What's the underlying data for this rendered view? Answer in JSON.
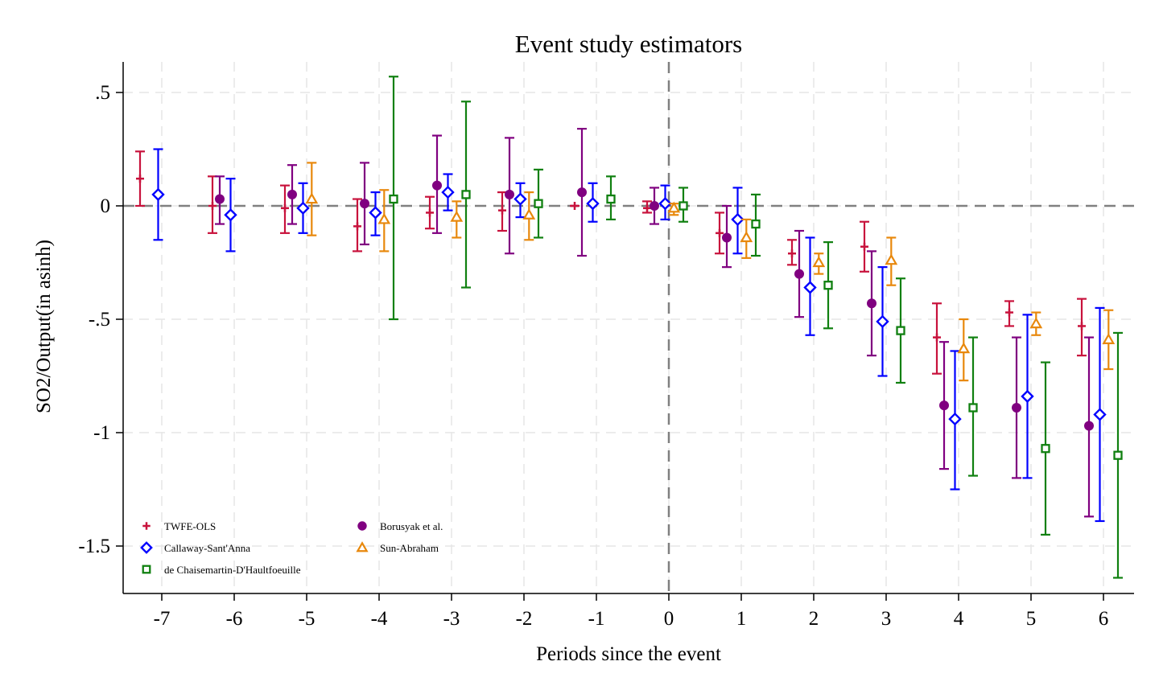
{
  "chart_data": {
    "type": "scatter",
    "title": "Event study estimators",
    "xlabel": "Periods since the event",
    "ylabel": "SO2/Output(in asinh)",
    "xlim": [
      -7.5,
      6.4
    ],
    "ylim": [
      -1.7,
      0.63
    ],
    "x_ticks": [
      {
        "value": -7,
        "label": "-7"
      },
      {
        "value": -6,
        "label": "-6"
      },
      {
        "value": -5,
        "label": "-5"
      },
      {
        "value": -4,
        "label": "-4"
      },
      {
        "value": -3,
        "label": "-3"
      },
      {
        "value": -2,
        "label": "-2"
      },
      {
        "value": -1,
        "label": "-1"
      },
      {
        "value": 0,
        "label": "0"
      },
      {
        "value": 1,
        "label": "1"
      },
      {
        "value": 2,
        "label": "2"
      },
      {
        "value": 3,
        "label": "3"
      },
      {
        "value": 4,
        "label": "4"
      },
      {
        "value": 5,
        "label": "5"
      },
      {
        "value": 6,
        "label": "6"
      }
    ],
    "y_ticks": [
      {
        "value": 0.5,
        "label": ".5"
      },
      {
        "value": 0,
        "label": "0"
      },
      {
        "value": -0.5,
        "label": "-.5"
      },
      {
        "value": -1,
        "label": "-1"
      },
      {
        "value": -1.5,
        "label": "-1.5"
      }
    ],
    "grid": true,
    "reference_lines": {
      "y": 0,
      "x": 0,
      "style": "dashed"
    },
    "legend_position": "bottom-left",
    "series": [
      {
        "name": "TWFE-OLS",
        "marker": "plus",
        "color": "#c8123c",
        "offset": -0.3,
        "points": [
          {
            "x": -7,
            "y": 0.12,
            "lo": 0.0,
            "hi": 0.24
          },
          {
            "x": -6,
            "y": 0.0,
            "lo": -0.12,
            "hi": 0.13
          },
          {
            "x": -5,
            "y": -0.01,
            "lo": -0.12,
            "hi": 0.09
          },
          {
            "x": -4,
            "y": -0.09,
            "lo": -0.2,
            "hi": 0.03
          },
          {
            "x": -3,
            "y": -0.03,
            "lo": -0.1,
            "hi": 0.04
          },
          {
            "x": -2,
            "y": -0.02,
            "lo": -0.11,
            "hi": 0.06
          },
          {
            "x": -1,
            "y": 0.0,
            "lo": 0.0,
            "hi": 0.0
          },
          {
            "x": 0,
            "y": -0.01,
            "lo": -0.03,
            "hi": 0.02
          },
          {
            "x": 1,
            "y": -0.12,
            "lo": -0.21,
            "hi": -0.03
          },
          {
            "x": 2,
            "y": -0.21,
            "lo": -0.26,
            "hi": -0.15
          },
          {
            "x": 3,
            "y": -0.18,
            "lo": -0.29,
            "hi": -0.07
          },
          {
            "x": 4,
            "y": -0.58,
            "lo": -0.74,
            "hi": -0.43
          },
          {
            "x": 5,
            "y": -0.47,
            "lo": -0.53,
            "hi": -0.42
          },
          {
            "x": 6,
            "y": -0.53,
            "lo": -0.66,
            "hi": -0.41
          }
        ]
      },
      {
        "name": "Borusyak et al.",
        "marker": "circle",
        "color": "#800080",
        "offset": -0.2,
        "points": [
          {
            "x": -6,
            "y": 0.03,
            "lo": -0.08,
            "hi": 0.13
          },
          {
            "x": -5,
            "y": 0.05,
            "lo": -0.08,
            "hi": 0.18
          },
          {
            "x": -4,
            "y": 0.01,
            "lo": -0.17,
            "hi": 0.19
          },
          {
            "x": -3,
            "y": 0.09,
            "lo": -0.12,
            "hi": 0.31
          },
          {
            "x": -2,
            "y": 0.05,
            "lo": -0.21,
            "hi": 0.3
          },
          {
            "x": -1,
            "y": 0.06,
            "lo": -0.22,
            "hi": 0.34
          },
          {
            "x": 0,
            "y": 0.0,
            "lo": -0.08,
            "hi": 0.08
          },
          {
            "x": 1,
            "y": -0.14,
            "lo": -0.27,
            "hi": 0.0
          },
          {
            "x": 2,
            "y": -0.3,
            "lo": -0.49,
            "hi": -0.11
          },
          {
            "x": 3,
            "y": -0.43,
            "lo": -0.66,
            "hi": -0.2
          },
          {
            "x": 4,
            "y": -0.88,
            "lo": -1.16,
            "hi": -0.6
          },
          {
            "x": 5,
            "y": -0.89,
            "lo": -1.2,
            "hi": -0.58
          },
          {
            "x": 6,
            "y": -0.97,
            "lo": -1.37,
            "hi": -0.58
          }
        ]
      },
      {
        "name": "Callaway-Sant'Anna",
        "marker": "diamond",
        "color": "#0000ff",
        "offset": -0.05,
        "points": [
          {
            "x": -7,
            "y": 0.05,
            "lo": -0.15,
            "hi": 0.25
          },
          {
            "x": -6,
            "y": -0.04,
            "lo": -0.2,
            "hi": 0.12
          },
          {
            "x": -5,
            "y": -0.01,
            "lo": -0.12,
            "hi": 0.1
          },
          {
            "x": -4,
            "y": -0.03,
            "lo": -0.13,
            "hi": 0.06
          },
          {
            "x": -3,
            "y": 0.06,
            "lo": -0.02,
            "hi": 0.14
          },
          {
            "x": -2,
            "y": 0.03,
            "lo": -0.05,
            "hi": 0.1
          },
          {
            "x": -1,
            "y": 0.01,
            "lo": -0.07,
            "hi": 0.1
          },
          {
            "x": 0,
            "y": 0.01,
            "lo": -0.06,
            "hi": 0.09
          },
          {
            "x": 1,
            "y": -0.06,
            "lo": -0.21,
            "hi": 0.08
          },
          {
            "x": 2,
            "y": -0.36,
            "lo": -0.57,
            "hi": -0.14
          },
          {
            "x": 3,
            "y": -0.51,
            "lo": -0.75,
            "hi": -0.27
          },
          {
            "x": 4,
            "y": -0.94,
            "lo": -1.25,
            "hi": -0.64
          },
          {
            "x": 5,
            "y": -0.84,
            "lo": -1.2,
            "hi": -0.48
          },
          {
            "x": 6,
            "y": -0.92,
            "lo": -1.39,
            "hi": -0.45
          }
        ]
      },
      {
        "name": "Sun-Abraham",
        "marker": "triangle",
        "color": "#e8880c",
        "offset": 0.07,
        "points": [
          {
            "x": -5,
            "y": 0.03,
            "lo": -0.13,
            "hi": 0.19
          },
          {
            "x": -4,
            "y": -0.06,
            "lo": -0.2,
            "hi": 0.07
          },
          {
            "x": -3,
            "y": -0.05,
            "lo": -0.14,
            "hi": 0.02
          },
          {
            "x": -2,
            "y": -0.04,
            "lo": -0.15,
            "hi": 0.06
          },
          {
            "x": 0,
            "y": -0.01,
            "lo": -0.04,
            "hi": 0.01
          },
          {
            "x": 1,
            "y": -0.14,
            "lo": -0.23,
            "hi": -0.06
          },
          {
            "x": 2,
            "y": -0.25,
            "lo": -0.3,
            "hi": -0.21
          },
          {
            "x": 3,
            "y": -0.24,
            "lo": -0.35,
            "hi": -0.14
          },
          {
            "x": 4,
            "y": -0.63,
            "lo": -0.77,
            "hi": -0.5
          },
          {
            "x": 5,
            "y": -0.52,
            "lo": -0.57,
            "hi": -0.47
          },
          {
            "x": 6,
            "y": -0.59,
            "lo": -0.72,
            "hi": -0.46
          }
        ]
      },
      {
        "name": "de Chaisemartin-D'Haultfoeuille",
        "marker": "square",
        "color": "#108010",
        "offset": 0.2,
        "points": [
          {
            "x": -4,
            "y": 0.03,
            "lo": -0.5,
            "hi": 0.57
          },
          {
            "x": -3,
            "y": 0.05,
            "lo": -0.36,
            "hi": 0.46
          },
          {
            "x": -2,
            "y": 0.01,
            "lo": -0.14,
            "hi": 0.16
          },
          {
            "x": -1,
            "y": 0.03,
            "lo": -0.06,
            "hi": 0.13
          },
          {
            "x": 0,
            "y": 0.0,
            "lo": -0.07,
            "hi": 0.08
          },
          {
            "x": 1,
            "y": -0.08,
            "lo": -0.22,
            "hi": 0.05
          },
          {
            "x": 2,
            "y": -0.35,
            "lo": -0.54,
            "hi": -0.16
          },
          {
            "x": 3,
            "y": -0.55,
            "lo": -0.78,
            "hi": -0.32
          },
          {
            "x": 4,
            "y": -0.89,
            "lo": -1.19,
            "hi": -0.58
          },
          {
            "x": 5,
            "y": -1.07,
            "lo": -1.45,
            "hi": -0.69
          },
          {
            "x": 6,
            "y": -1.1,
            "lo": -1.64,
            "hi": -0.56
          }
        ]
      }
    ],
    "legend": [
      {
        "series": 0
      },
      {
        "series": 1
      },
      {
        "series": 2
      },
      {
        "series": 3
      },
      {
        "series": 4
      }
    ]
  }
}
